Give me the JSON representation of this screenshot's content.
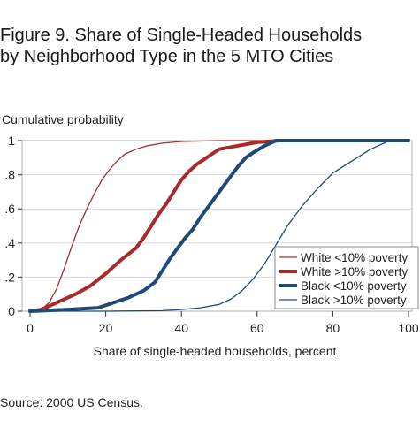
{
  "header": {
    "title_line1": "Figure 9. Share of Single-Headed Households",
    "title_line2": "by Neighborhood Type in the 5 MTO Cities"
  },
  "footer": {
    "source": "Source: 2000 US Census."
  },
  "chart_data": {
    "type": "line",
    "ylabel": "Cumulative probability",
    "xlabel": "Share of single-headed households, percent",
    "xlim": [
      0,
      100
    ],
    "ylim": [
      0,
      1
    ],
    "x_ticks": [
      0,
      20,
      40,
      60,
      80,
      100
    ],
    "x_tick_labels": [
      "0",
      "20",
      "40",
      "60",
      "80",
      "100"
    ],
    "y_ticks": [
      0,
      0.2,
      0.4,
      0.6,
      0.8,
      1
    ],
    "y_tick_labels": [
      "0",
      ".2",
      ".4",
      ".6",
      ".8",
      "1"
    ],
    "grid": "horizontal",
    "legend_position": "bottom-right",
    "series": [
      {
        "name": "White <10% poverty",
        "color": "#a03030",
        "style": "thin",
        "x": [
          0,
          3,
          5,
          7,
          9,
          11,
          13,
          15,
          17,
          19,
          21,
          23,
          25,
          28,
          31,
          35,
          40,
          50,
          60,
          100
        ],
        "y": [
          0,
          0.01,
          0.05,
          0.13,
          0.25,
          0.38,
          0.5,
          0.6,
          0.69,
          0.77,
          0.83,
          0.88,
          0.92,
          0.95,
          0.97,
          0.985,
          0.995,
          1,
          1,
          1
        ]
      },
      {
        "name": "White >10% poverty",
        "color": "#a82a2a",
        "style": "thick",
        "x": [
          0,
          3,
          5,
          8,
          12,
          16,
          20,
          24,
          28,
          30,
          32,
          34,
          36,
          38,
          40,
          42,
          44,
          46,
          48,
          50,
          55,
          60,
          66,
          100
        ],
        "y": [
          0,
          0.01,
          0.03,
          0.06,
          0.1,
          0.15,
          0.22,
          0.3,
          0.37,
          0.43,
          0.5,
          0.57,
          0.63,
          0.7,
          0.77,
          0.82,
          0.86,
          0.89,
          0.92,
          0.95,
          0.97,
          0.99,
          1,
          1
        ]
      },
      {
        "name": "Black <10% poverty",
        "color": "#1f4a78",
        "style": "thick",
        "x": [
          0,
          10,
          18,
          22,
          26,
          30,
          33,
          35,
          37,
          39,
          41,
          43,
          45,
          47,
          49,
          51,
          53,
          55,
          57,
          59,
          62,
          65,
          100
        ],
        "y": [
          0,
          0.01,
          0.02,
          0.05,
          0.08,
          0.12,
          0.17,
          0.24,
          0.31,
          0.37,
          0.43,
          0.48,
          0.55,
          0.61,
          0.67,
          0.73,
          0.79,
          0.85,
          0.9,
          0.93,
          0.97,
          1,
          1
        ]
      },
      {
        "name": "Black >10% poverty",
        "color": "#1f4a78",
        "style": "thin",
        "x": [
          0,
          20,
          35,
          40,
          45,
          50,
          53,
          56,
          59,
          62,
          65,
          68,
          72,
          76,
          80,
          85,
          90,
          95,
          100
        ],
        "y": [
          0,
          0,
          0.003,
          0.01,
          0.02,
          0.04,
          0.07,
          0.12,
          0.19,
          0.28,
          0.39,
          0.5,
          0.62,
          0.72,
          0.81,
          0.88,
          0.95,
          1,
          1
        ]
      }
    ]
  }
}
